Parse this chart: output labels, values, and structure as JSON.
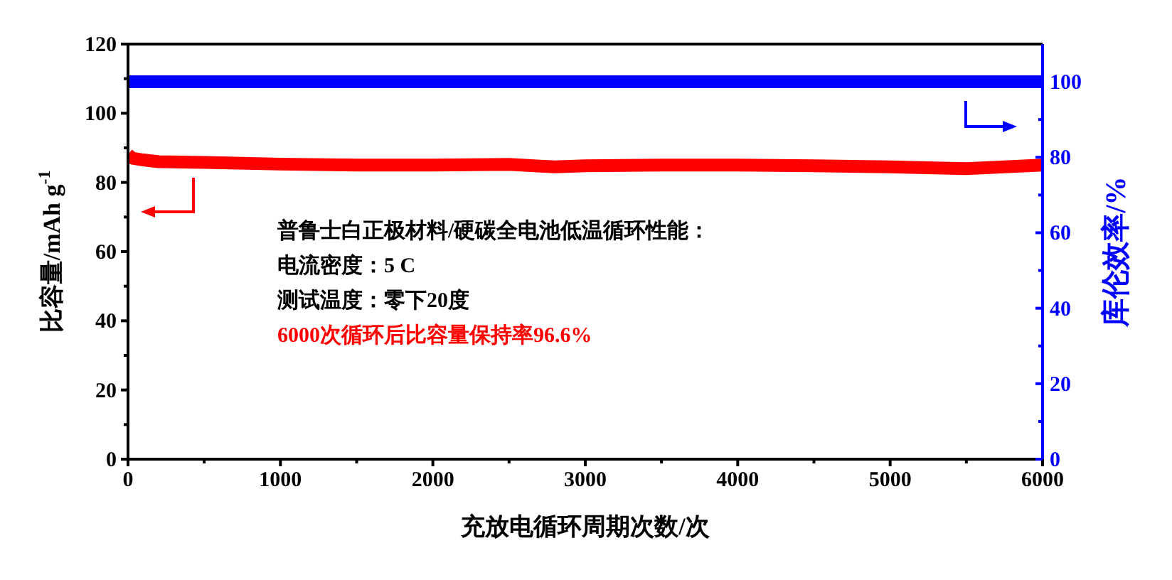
{
  "chart_data": {
    "type": "line",
    "xlabel": "充放电循环周期次数/次",
    "ylabel": "比容量/mAh g$^{-1}$",
    "y2label": "库伦效率/%",
    "xlim": [
      0,
      6000
    ],
    "xticks": [
      0,
      {
        "value": 500,
        "label": null
      },
      1000,
      {
        "value": 1500,
        "label": null
      },
      2000,
      {
        "value": 2500,
        "label": null
      },
      3000,
      {
        "value": 3500,
        "label": null
      },
      4000,
      {
        "value": 4500,
        "label": null
      },
      5000,
      {
        "value": 5500,
        "label": null
      },
      6000
    ],
    "ylim": [
      0,
      120
    ],
    "yticks": [
      0,
      {
        "value": 10,
        "label": null
      },
      20,
      {
        "value": 30,
        "label": null
      },
      40,
      {
        "value": 50,
        "label": null
      },
      60,
      {
        "value": 70,
        "label": null
      },
      80,
      {
        "value": 90,
        "label": null
      },
      100,
      {
        "value": 110,
        "label": null
      },
      120
    ],
    "y2lim": [
      0,
      110
    ],
    "y2ticks": [
      0,
      {
        "value": 10,
        "label": null
      },
      20,
      {
        "value": 30,
        "label": null
      },
      40,
      {
        "value": 50,
        "label": null
      },
      60,
      {
        "value": 70,
        "label": null
      },
      80,
      {
        "value": 90,
        "label": null
      },
      100
    ],
    "annotations": [
      "普鲁士白正极材料/硬碳全电池低温循环性能：",
      "电流密度：5 C",
      "测试温度：零下20度",
      "6000次循环后比容量保持率96.6%"
    ],
    "series": [
      {
        "color": "#ff0000",
        "x": [
          0,
          30,
          100,
          200,
          500,
          1000,
          1500,
          2000,
          2500,
          2800,
          3000,
          3500,
          4000,
          4500,
          5000,
          5500,
          6000
        ],
        "values": [
          88,
          87,
          86.5,
          86,
          85.8,
          85.3,
          85,
          85,
          85.2,
          84.5,
          84.8,
          85,
          85,
          84.8,
          84.5,
          84,
          85
        ]
      },
      {
        "color": "#0000ff",
        "axis": "y2",
        "x": [
          0,
          1000,
          2000,
          3000,
          4000,
          5000,
          6000
        ],
        "values": [
          100,
          100,
          100,
          100,
          100,
          100,
          100
        ]
      }
    ]
  }
}
